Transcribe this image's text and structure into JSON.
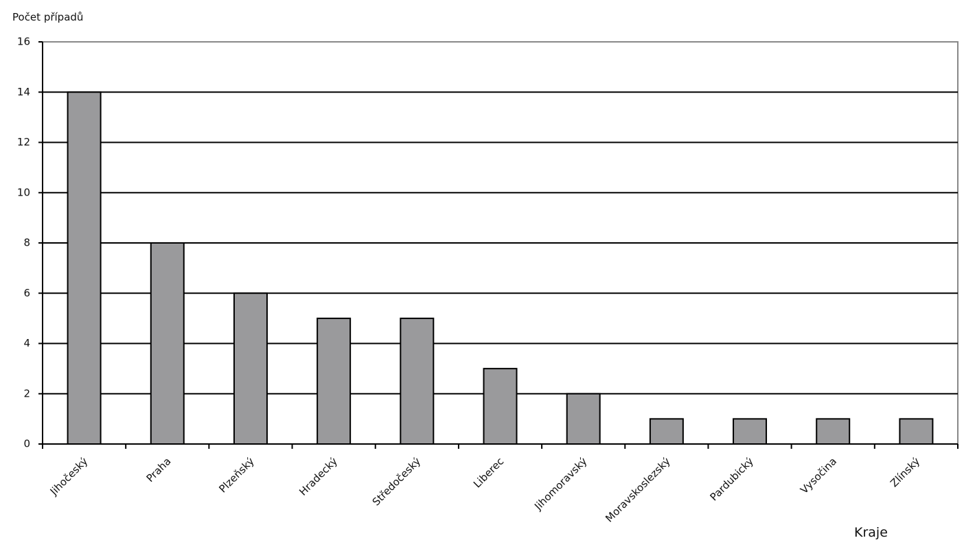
{
  "chart_data": {
    "type": "bar",
    "y_label": "Počet případů",
    "x_label": "Kraje",
    "categories": [
      "Jihočeský",
      "Praha",
      "Plzeňský",
      "Hradecký",
      "Středočeský",
      "Liberec",
      "Jihomoravský",
      "Moravskoslezský",
      "Pardubický",
      "Vysočina",
      "Zlínský"
    ],
    "values": [
      14,
      8,
      6,
      5,
      5,
      3,
      2,
      1,
      1,
      1,
      1
    ],
    "color": "#9a9a9c",
    "ylim": [
      0,
      16
    ],
    "yticks": [
      0,
      2,
      4,
      6,
      8,
      10,
      12,
      14,
      16
    ],
    "grid": true
  }
}
